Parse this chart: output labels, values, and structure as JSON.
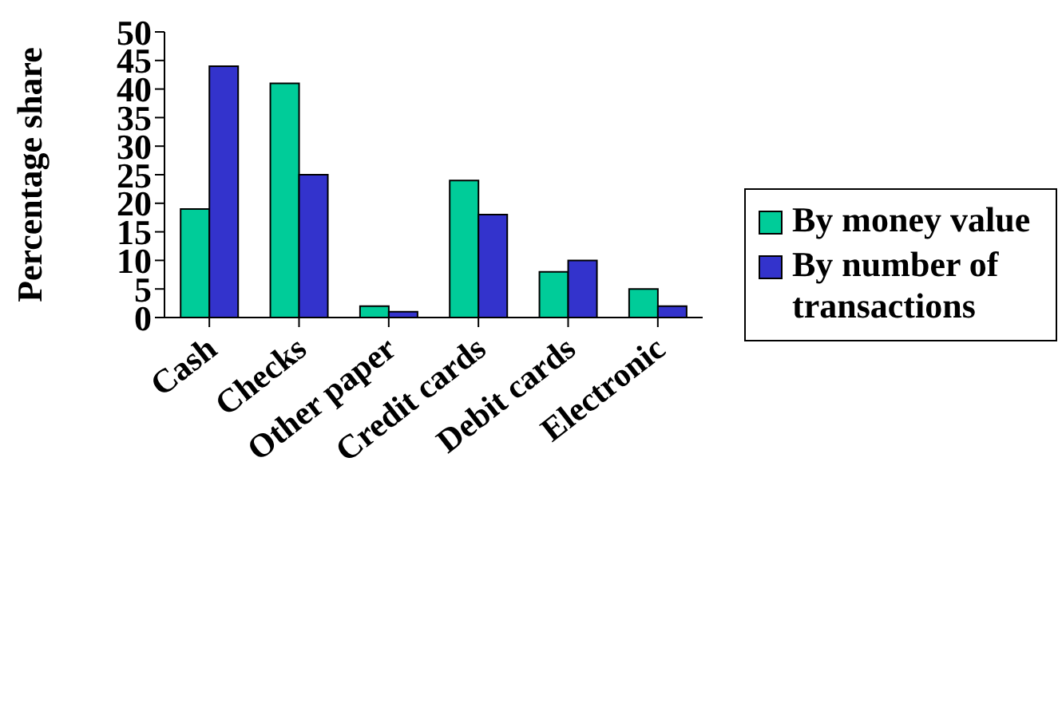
{
  "chart_data": {
    "type": "bar",
    "ylabel": "Percentage share",
    "categories": [
      "Cash",
      "Checks",
      "Other paper",
      "Credit cards",
      "Debit cards",
      "Electronic"
    ],
    "series": [
      {
        "name": "By money value",
        "color": "#00cc99",
        "values": [
          19,
          41,
          2,
          24,
          8,
          5
        ]
      },
      {
        "name": "By number of transactions",
        "color": "#3333cc",
        "values": [
          44,
          25,
          1,
          18,
          10,
          2
        ]
      }
    ],
    "ylim": [
      0,
      50
    ],
    "yticks": [
      0,
      5,
      10,
      15,
      20,
      25,
      30,
      35,
      40,
      45,
      50
    ],
    "grid": false,
    "legend": "right"
  }
}
